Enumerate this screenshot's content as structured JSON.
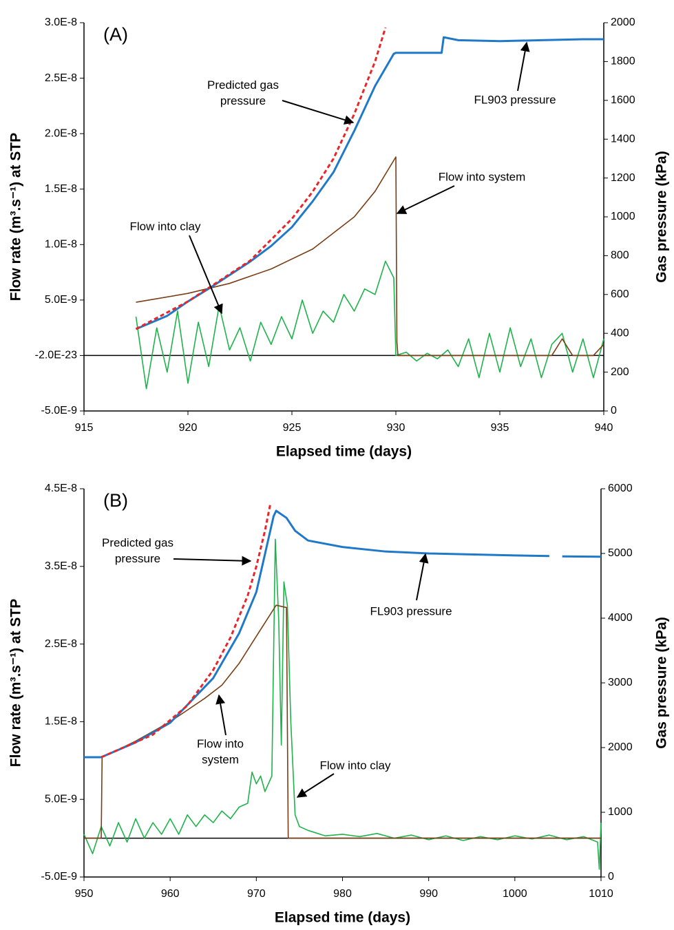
{
  "chart_data": [
    {
      "type": "line",
      "panel_label": "(A)",
      "xlabel": "Elapsed time (days)",
      "ylabel": "Flow rate (m³.s⁻¹) at STP",
      "y2label": "Gas pressure (kPa)",
      "xlim": [
        915,
        940
      ],
      "xticks": [
        915,
        920,
        925,
        930,
        935,
        940
      ],
      "ylim": [
        -5e-09,
        3e-08
      ],
      "yticks": [
        {
          "value": 3e-08,
          "label": "3.0E-8"
        },
        {
          "value": 2.5e-08,
          "label": "2.5E-8"
        },
        {
          "value": 2e-08,
          "label": "2.0E-8"
        },
        {
          "value": 1.5e-08,
          "label": "1.5E-8"
        },
        {
          "value": 1e-08,
          "label": "1.0E-8"
        },
        {
          "value": 5e-09,
          "label": "5.0E-9"
        },
        {
          "value": -2e-23,
          "label": "-2.0E-23"
        },
        {
          "value": -5e-09,
          "label": "-5.0E-9"
        }
      ],
      "y2lim": [
        0,
        2000
      ],
      "y2ticks": [
        0,
        200,
        400,
        600,
        800,
        1000,
        1200,
        1400,
        1600,
        1800,
        2000
      ],
      "series": [
        {
          "name": "FL903 pressure",
          "color": "#1f78c8",
          "axis": "y2",
          "x": [
            917.5,
            919,
            920,
            921,
            922,
            923,
            924,
            925,
            926,
            927,
            928,
            929,
            929.9,
            930,
            932.2,
            932.3,
            933,
            935,
            937,
            939,
            940
          ],
          "values": [
            422,
            490,
            564,
            630,
            700,
            770,
            850,
            947,
            1080,
            1230,
            1443,
            1674,
            1840,
            1845,
            1845,
            1925,
            1910,
            1905,
            1910,
            1915,
            1915
          ]
        },
        {
          "name": "Predicted gas pressure",
          "color": "#e8262a",
          "axis": "y2",
          "style": "dashed",
          "x": [
            917.5,
            920,
            923,
            925,
            926,
            927,
            928,
            929,
            929.5
          ],
          "values": [
            422,
            564,
            775,
            990,
            1130,
            1300,
            1530,
            1800,
            1975
          ]
        },
        {
          "name": "Flow into system",
          "color": "#7a3c12",
          "x": [
            917.5,
            920,
            922,
            924,
            926,
            928,
            929,
            930,
            930.05,
            930.1,
            935,
            937.5,
            938,
            938.5,
            939.5,
            940
          ],
          "values": [
            4.8e-09,
            5.6e-09,
            6.5e-09,
            7.8e-09,
            9.6e-09,
            1.25e-08,
            1.48e-08,
            1.79e-08,
            1.2e-09,
            0,
            0,
            0,
            1.5e-09,
            0,
            0,
            1e-09
          ]
        },
        {
          "name": "Flow into clay",
          "color": "#1db34a",
          "x": [
            917.5,
            918,
            918.5,
            919,
            919.5,
            920,
            920.5,
            921,
            921.5,
            922,
            922.5,
            923,
            923.5,
            924,
            924.5,
            925,
            925.5,
            926,
            926.5,
            927,
            927.5,
            928,
            928.5,
            929,
            929.5,
            929.9,
            930,
            930.5,
            931,
            931.5,
            932,
            932.5,
            933,
            933.5,
            934,
            934.5,
            935,
            935.5,
            936,
            936.5,
            937,
            937.5,
            938,
            938.5,
            939,
            939.5,
            940
          ],
          "values": [
            3.5e-09,
            -3e-09,
            2.5e-09,
            -1.5e-09,
            4e-09,
            -2.5e-09,
            3e-09,
            -1e-09,
            4.5e-09,
            5e-10,
            2.5e-09,
            -5e-10,
            3e-09,
            1e-09,
            3.5e-09,
            1.5e-09,
            5e-09,
            2e-09,
            4e-09,
            3e-09,
            5.5e-09,
            4e-09,
            6e-09,
            5.5e-09,
            8.5e-09,
            7e-09,
            0,
            3e-10,
            -5e-10,
            2e-10,
            -3e-10,
            5e-10,
            -1e-09,
            1.5e-09,
            -2e-09,
            2e-09,
            -1.5e-09,
            2.5e-09,
            -1e-09,
            1.5e-09,
            -2e-09,
            1e-09,
            2e-09,
            -1.5e-09,
            1.5e-09,
            -2e-09,
            1.5e-09
          ]
        }
      ]
    },
    {
      "type": "line",
      "panel_label": "(B)",
      "xlabel": "Elapsed time (days)",
      "ylabel": "Flow rate (m³.s⁻¹) at STP",
      "y2label": "Gas pressure (kPa)",
      "xlim": [
        950,
        1010
      ],
      "xticks": [
        950,
        960,
        970,
        980,
        990,
        1000,
        1010
      ],
      "ylim": [
        -5e-09,
        4.5e-08
      ],
      "yticks": [
        {
          "value": 4.5e-08,
          "label": "4.5E-8"
        },
        {
          "value": 3.5e-08,
          "label": "3.5E-8"
        },
        {
          "value": 2.5e-08,
          "label": "2.5E-8"
        },
        {
          "value": 1.5e-08,
          "label": "1.5E-8"
        },
        {
          "value": 5e-09,
          "label": "5.0E-9"
        },
        {
          "value": -5e-09,
          "label": "-5.0E-9"
        }
      ],
      "y2lim": [
        0,
        6000
      ],
      "y2ticks": [
        0,
        1000,
        2000,
        3000,
        4000,
        5000,
        6000
      ],
      "series": [
        {
          "name": "FL903 pressure",
          "color": "#1f78c8",
          "axis": "y2",
          "x": [
            950,
            952,
            956,
            960,
            965,
            968,
            970,
            972,
            972.3,
            973.5,
            974.5,
            976,
            980,
            985,
            990,
            1000,
            1004,
            1004.8,
            1005.5,
            1010
          ],
          "values": [
            1851,
            1851,
            2080,
            2383,
            3074,
            3766,
            4404,
            5574,
            5660,
            5550,
            5350,
            5200,
            5100,
            5030,
            5000,
            4970,
            4960,
            null,
            4955,
            4950
          ]
        },
        {
          "name": "Predicted gas pressure",
          "color": "#e8262a",
          "axis": "y2",
          "style": "dashed",
          "x": [
            952,
            958,
            962,
            965,
            967,
            969,
            970,
            971,
            971.6
          ],
          "values": [
            1851,
            2200,
            2650,
            3200,
            3700,
            4350,
            4800,
            5350,
            5750
          ]
        },
        {
          "name": "Flow into system",
          "color": "#7a3c12",
          "x": [
            950,
            952,
            952.1,
            956,
            960,
            964,
            966,
            968,
            970,
            972.3,
            973.5,
            973.7,
            1010
          ],
          "values": [
            0,
            0,
            1.04e-08,
            1.25e-08,
            1.5e-08,
            1.8e-08,
            1.97e-08,
            2.25e-08,
            2.6e-08,
            3e-08,
            2.97e-08,
            0,
            0
          ]
        },
        {
          "name": "Flow into clay",
          "color": "#1db34a",
          "x": [
            950,
            951,
            952,
            953,
            954,
            955,
            956,
            957,
            958,
            959,
            960,
            961,
            962,
            963,
            964,
            965,
            966,
            967,
            968,
            969,
            969.5,
            970,
            970.5,
            971,
            971.8,
            972.2,
            972.6,
            972.9,
            973.2,
            973.6,
            974,
            974.5,
            975,
            976,
            978,
            980,
            982,
            984,
            986,
            988,
            990,
            992,
            994,
            996,
            998,
            1000,
            1002,
            1004,
            1006,
            1008,
            1009.6,
            1009.8,
            1010
          ],
          "values": [
            5e-10,
            -2e-09,
            1.5e-09,
            -1e-09,
            2e-09,
            -5e-10,
            2.5e-09,
            0,
            2e-09,
            5e-10,
            2.5e-09,
            5e-10,
            3e-09,
            1.5e-09,
            3e-09,
            2e-09,
            3.5e-09,
            2.5e-09,
            4e-09,
            4.5e-09,
            8.5e-09,
            7e-09,
            8e-09,
            6e-09,
            8e-09,
            3.85e-08,
            2.8e-08,
            1.2e-08,
            3.3e-08,
            3e-08,
            1.5e-08,
            3e-09,
            1.5e-09,
            1e-09,
            3e-10,
            5e-10,
            2e-10,
            6e-10,
            0,
            4e-10,
            -2e-10,
            3e-10,
            -3e-10,
            2e-10,
            -2e-10,
            3e-10,
            -1e-10,
            4e-10,
            -2e-10,
            2e-10,
            -5e-10,
            -4e-09,
            2e-09
          ]
        }
      ]
    }
  ]
}
